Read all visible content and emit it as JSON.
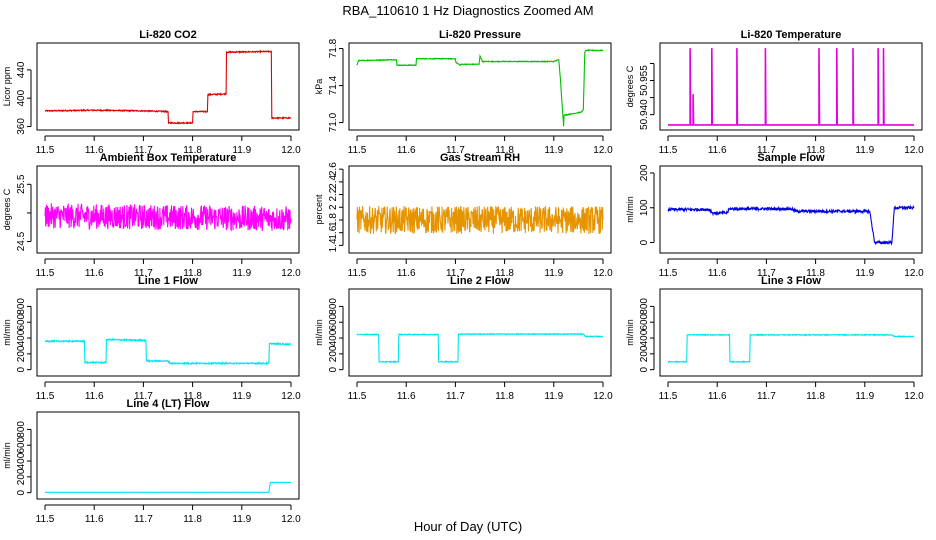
{
  "figure": {
    "title": "RBA_110610  1 Hz Diagnostics Zoomed AM",
    "xlabel": "Hour of Day (UTC)"
  },
  "chart_data": [
    {
      "type": "line",
      "title": "Li-820 CO2",
      "ylabel": "Licor ppm",
      "color": "#e00000",
      "xlim": [
        11.5,
        12.0
      ],
      "xticks": [
        "11.5",
        "11.6",
        "11.7",
        "11.8",
        "11.9",
        "12.0"
      ],
      "ylim": [
        355,
        478
      ],
      "yticks": [
        360,
        400,
        440
      ],
      "noise": 0.8,
      "series": [
        {
          "x": [
            11.5,
            11.6,
            11.7,
            11.75,
            11.751,
            11.8,
            11.801,
            11.83,
            11.831,
            11.868,
            11.869,
            11.96,
            11.961,
            12.0
          ],
          "y": [
            382,
            383,
            382,
            381,
            365,
            365,
            381,
            381,
            405,
            406,
            465,
            466,
            372,
            372
          ]
        }
      ]
    },
    {
      "type": "line",
      "title": "Li-820 Pressure",
      "ylabel": "kPa",
      "color": "#00c000",
      "xlim": [
        11.5,
        12.0
      ],
      "xticks": [
        "11.5",
        "11.6",
        "11.7",
        "11.8",
        "11.9",
        "12.0"
      ],
      "ylim": [
        70.92,
        71.86
      ],
      "yticks": [
        71.0,
        71.4,
        71.8
      ],
      "ytick_labels": [
        "71.0",
        "71.4",
        "71.8"
      ],
      "noise": 0.004,
      "series": [
        {
          "x": [
            11.5,
            11.503,
            11.58,
            11.581,
            11.62,
            11.621,
            11.7,
            11.701,
            11.71,
            11.711,
            11.748,
            11.75,
            11.755,
            11.9,
            11.91,
            11.913,
            11.92,
            11.921,
            11.953,
            11.955,
            11.96,
            11.963,
            11.965,
            12.0
          ],
          "y": [
            71.62,
            71.67,
            71.68,
            71.62,
            71.62,
            71.69,
            71.69,
            71.65,
            71.62,
            71.63,
            71.63,
            71.72,
            71.66,
            71.66,
            71.68,
            71.5,
            70.96,
            71.08,
            71.11,
            71.11,
            71.14,
            71.76,
            71.78,
            71.78
          ]
        }
      ]
    },
    {
      "type": "line",
      "title": "Li-820 Temperature",
      "ylabel": "degrees C",
      "color": "#e000e0",
      "xlim": [
        11.5,
        12.0
      ],
      "xticks": [
        "11.5",
        "11.6",
        "11.7",
        "11.8",
        "11.9",
        "12.0"
      ],
      "ylim": [
        50.9355,
        50.961
      ],
      "yticks": [
        50.94,
        50.945,
        50.95,
        50.955
      ],
      "ytick_labels": [
        "50.940",
        "",
        "50.955",
        ""
      ],
      "noise": 0,
      "series": [
        {
          "x": [
            11.5,
            11.545,
            11.545,
            11.546,
            11.551,
            11.551,
            11.552,
            11.589,
            11.589,
            11.59,
            11.64,
            11.64,
            11.641,
            11.698,
            11.698,
            11.699,
            11.807,
            11.807,
            11.808,
            11.843,
            11.843,
            11.844,
            11.876,
            11.876,
            11.877,
            11.927,
            11.927,
            11.928,
            11.938,
            11.938,
            11.939,
            12.0
          ],
          "y": [
            50.937,
            50.937,
            50.9595,
            50.937,
            50.937,
            50.946,
            50.937,
            50.937,
            50.9595,
            50.937,
            50.937,
            50.9595,
            50.937,
            50.937,
            50.9595,
            50.937,
            50.937,
            50.9595,
            50.937,
            50.937,
            50.9595,
            50.937,
            50.937,
            50.9595,
            50.937,
            50.937,
            50.9595,
            50.937,
            50.937,
            50.9595,
            50.937,
            50.937
          ]
        }
      ]
    },
    {
      "type": "line",
      "title": "Ambient Box Temperature",
      "ylabel": "degrees C",
      "color": "#ff00ff",
      "xlim": [
        11.5,
        12.0
      ],
      "xticks": [
        "11.5",
        "11.6",
        "11.7",
        "11.8",
        "11.9",
        "12.0"
      ],
      "ylim": [
        24.3,
        25.82
      ],
      "yticks": [
        24.5,
        25.0,
        25.5
      ],
      "ytick_labels": [
        "24.5",
        "",
        "25.5"
      ],
      "noise": 0.22,
      "series": [
        {
          "x": [
            11.5,
            12.0
          ],
          "y": [
            24.95,
            24.9
          ]
        }
      ]
    },
    {
      "type": "line",
      "title": "Gas Stream RH",
      "ylabel": "percent",
      "color": "#e59400",
      "xlim": [
        11.5,
        12.0
      ],
      "xticks": [
        "11.5",
        "11.6",
        "11.7",
        "11.8",
        "11.9",
        "12.0"
      ],
      "ylim": [
        1.28,
        2.65
      ],
      "yticks": [
        1.4,
        1.6,
        1.8,
        2.0,
        2.2,
        2.4,
        2.6
      ],
      "noise": 0.22,
      "series": [
        {
          "x": [
            11.5,
            12.0
          ],
          "y": [
            1.8,
            1.8
          ]
        }
      ]
    },
    {
      "type": "line",
      "title": "Sample Flow",
      "ylabel": "ml/min",
      "color": "#0000e0",
      "xlim": [
        11.5,
        12.0
      ],
      "xticks": [
        "11.5",
        "11.6",
        "11.7",
        "11.8",
        "11.9",
        "12.0"
      ],
      "ylim": [
        -30,
        220
      ],
      "yticks": [
        0,
        100,
        200
      ],
      "noise": 4,
      "series": [
        {
          "x": [
            11.5,
            11.585,
            11.59,
            11.62,
            11.625,
            11.75,
            11.76,
            11.91,
            11.92,
            11.95,
            11.955,
            11.96,
            11.965,
            12.0
          ],
          "y": [
            95,
            95,
            85,
            85,
            97,
            97,
            90,
            90,
            0,
            0,
            0,
            100,
            100,
            100
          ]
        }
      ]
    },
    {
      "type": "line",
      "title": "Line 1 Flow",
      "ylabel": "ml/min",
      "color": "#00e5ee",
      "xlim": [
        11.5,
        12.0
      ],
      "xticks": [
        "11.5",
        "11.6",
        "11.7",
        "11.8",
        "11.9",
        "12.0"
      ],
      "ylim": [
        -80,
        1020
      ],
      "yticks": [
        0,
        200,
        400,
        600,
        800
      ],
      "noise": 8,
      "series": [
        {
          "x": [
            11.5,
            11.58,
            11.581,
            11.624,
            11.625,
            11.705,
            11.706,
            11.75,
            11.755,
            11.955,
            11.956,
            12.0
          ],
          "y": [
            360,
            360,
            90,
            90,
            380,
            370,
            110,
            110,
            80,
            80,
            330,
            320
          ]
        }
      ]
    },
    {
      "type": "line",
      "title": "Line 2 Flow",
      "ylabel": "ml/min",
      "color": "#00e5ee",
      "xlim": [
        11.5,
        12.0
      ],
      "xticks": [
        "11.5",
        "11.6",
        "11.7",
        "11.8",
        "11.9",
        "12.0"
      ],
      "ylim": [
        -80,
        1020
      ],
      "yticks": [
        0,
        200,
        400,
        600,
        800
      ],
      "noise": 5,
      "series": [
        {
          "x": [
            11.5,
            11.544,
            11.545,
            11.584,
            11.585,
            11.665,
            11.666,
            11.705,
            11.706,
            11.96,
            11.965,
            12.0
          ],
          "y": [
            445,
            445,
            100,
            100,
            445,
            445,
            100,
            100,
            450,
            450,
            420,
            420
          ]
        }
      ]
    },
    {
      "type": "line",
      "title": "Line 3 Flow",
      "ylabel": "ml/min",
      "color": "#00e5ee",
      "xlim": [
        11.5,
        12.0
      ],
      "xticks": [
        "11.5",
        "11.6",
        "11.7",
        "11.8",
        "11.9",
        "12.0"
      ],
      "ylim": [
        -80,
        1020
      ],
      "yticks": [
        0,
        200,
        400,
        600,
        800
      ],
      "noise": 5,
      "series": [
        {
          "x": [
            11.5,
            11.538,
            11.539,
            11.625,
            11.626,
            11.666,
            11.667,
            11.955,
            11.96,
            12.0
          ],
          "y": [
            100,
            100,
            440,
            440,
            100,
            100,
            440,
            440,
            420,
            420
          ]
        }
      ]
    },
    {
      "type": "line",
      "title": "Line 4 (LT) Flow",
      "ylabel": "ml/min",
      "color": "#00e5ee",
      "xlim": [
        11.5,
        12.0
      ],
      "xticks": [
        "11.5",
        "11.6",
        "11.7",
        "11.8",
        "11.9",
        "12.0"
      ],
      "ylim": [
        -80,
        1020
      ],
      "yticks": [
        0,
        200,
        400,
        600,
        800
      ],
      "noise": 1,
      "series": [
        {
          "x": [
            11.5,
            11.955,
            11.958,
            12.0
          ],
          "y": [
            5,
            5,
            130,
            130
          ]
        }
      ]
    }
  ]
}
